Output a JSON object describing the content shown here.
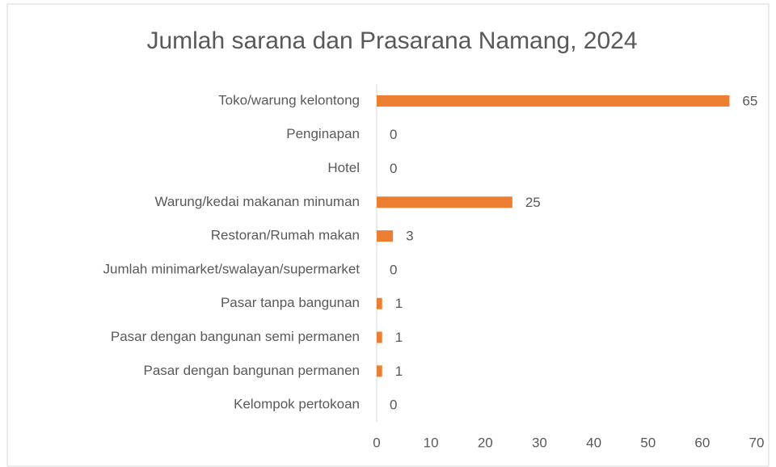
{
  "chart_data": {
    "type": "barh",
    "title": "Jumlah sarana dan Prasarana Namang, 2024",
    "categories": [
      "Toko/warung kelontong",
      "Penginapan",
      "Hotel",
      "Warung/kedai makanan minuman",
      "Restoran/Rumah makan",
      "Jumlah minimarket/swalayan/supermarket",
      "Pasar tanpa bangunan",
      "Pasar dengan bangunan semi permanen",
      "Pasar dengan bangunan permanen",
      "Kelompok pertokoan"
    ],
    "values": [
      65,
      0,
      0,
      25,
      3,
      0,
      1,
      1,
      1,
      0
    ],
    "color": "#ed7d31",
    "xlim": [
      0,
      70
    ],
    "xticks": [
      0,
      10,
      20,
      30,
      40,
      50,
      60,
      70
    ],
    "grid": false
  }
}
